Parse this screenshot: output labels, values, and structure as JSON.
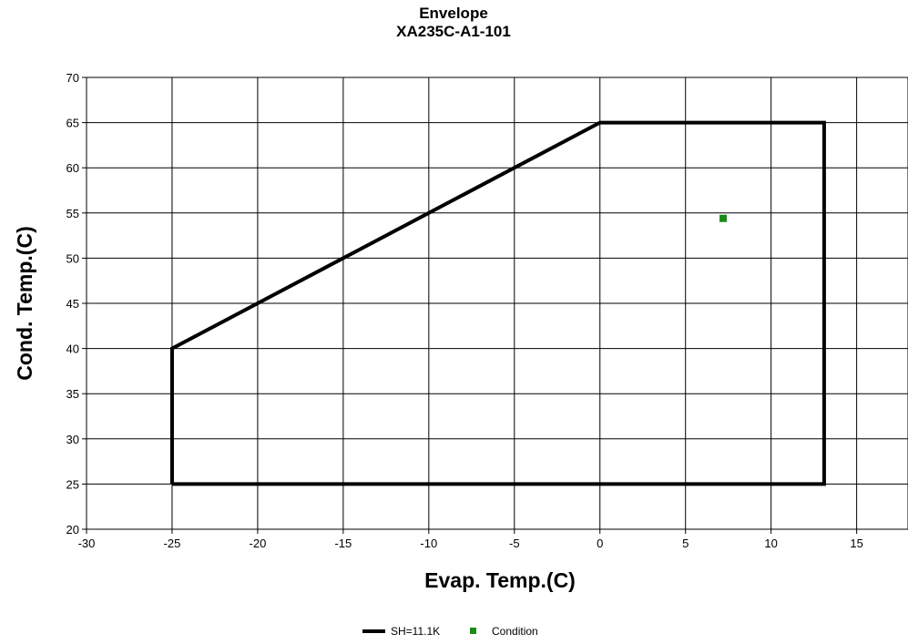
{
  "chart_data": {
    "type": "line",
    "title": "Envelope",
    "subtitle": "XA235C-A1-101",
    "xlabel": "Evap. Temp.(C)",
    "ylabel": "Cond. Temp.(C)",
    "xlim": [
      -30,
      18
    ],
    "ylim": [
      20,
      70
    ],
    "x_ticks": [
      -30,
      -25,
      -20,
      -15,
      -10,
      -5,
      0,
      5,
      10,
      15
    ],
    "y_ticks": [
      20,
      25,
      30,
      35,
      40,
      45,
      50,
      55,
      60,
      65,
      70
    ],
    "grid": true,
    "legend_position": "bottom-center",
    "series": [
      {
        "name": "SH=11.1K",
        "kind": "line",
        "color": "#000000",
        "points": [
          [
            -25,
            25
          ],
          [
            -25,
            40
          ],
          [
            0,
            65
          ],
          [
            13.1,
            65
          ],
          [
            13.1,
            25
          ],
          [
            -25,
            25
          ]
        ]
      },
      {
        "name": "Condition",
        "kind": "marker",
        "color": "#1a8a1a",
        "points": [
          [
            7.2,
            54.4
          ]
        ]
      }
    ]
  }
}
